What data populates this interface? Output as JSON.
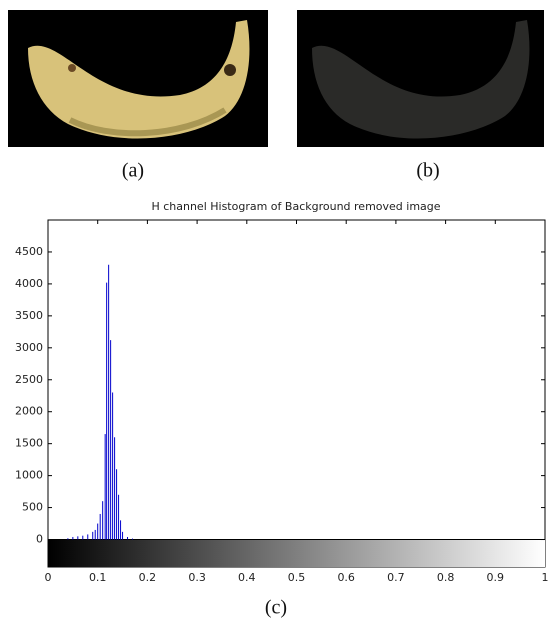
{
  "captions": [
    "(a)",
    "(b)",
    "(c)"
  ],
  "chart_data": {
    "type": "stem",
    "title": "H channel Histogram of Background removed image",
    "x": [
      0.04,
      0.05,
      0.06,
      0.07,
      0.08,
      0.09,
      0.095,
      0.1,
      0.105,
      0.11,
      0.115,
      0.118,
      0.122,
      0.126,
      0.13,
      0.134,
      0.138,
      0.142,
      0.146,
      0.15,
      0.16,
      0.17
    ],
    "values": [
      20,
      40,
      50,
      60,
      80,
      120,
      150,
      250,
      400,
      600,
      1650,
      4020,
      4300,
      3120,
      2300,
      1600,
      1100,
      700,
      300,
      120,
      40,
      15
    ],
    "color": "#0000cc",
    "xlim": [
      0,
      1
    ],
    "xticks": [
      0,
      0.1,
      0.2,
      0.3,
      0.4,
      0.5,
      0.6,
      0.7,
      0.8,
      0.9,
      1
    ],
    "ylim": [
      -430,
      5000
    ],
    "yticks": [
      0,
      500,
      1000,
      1500,
      2000,
      2500,
      3000,
      3500,
      4000,
      4500
    ]
  }
}
